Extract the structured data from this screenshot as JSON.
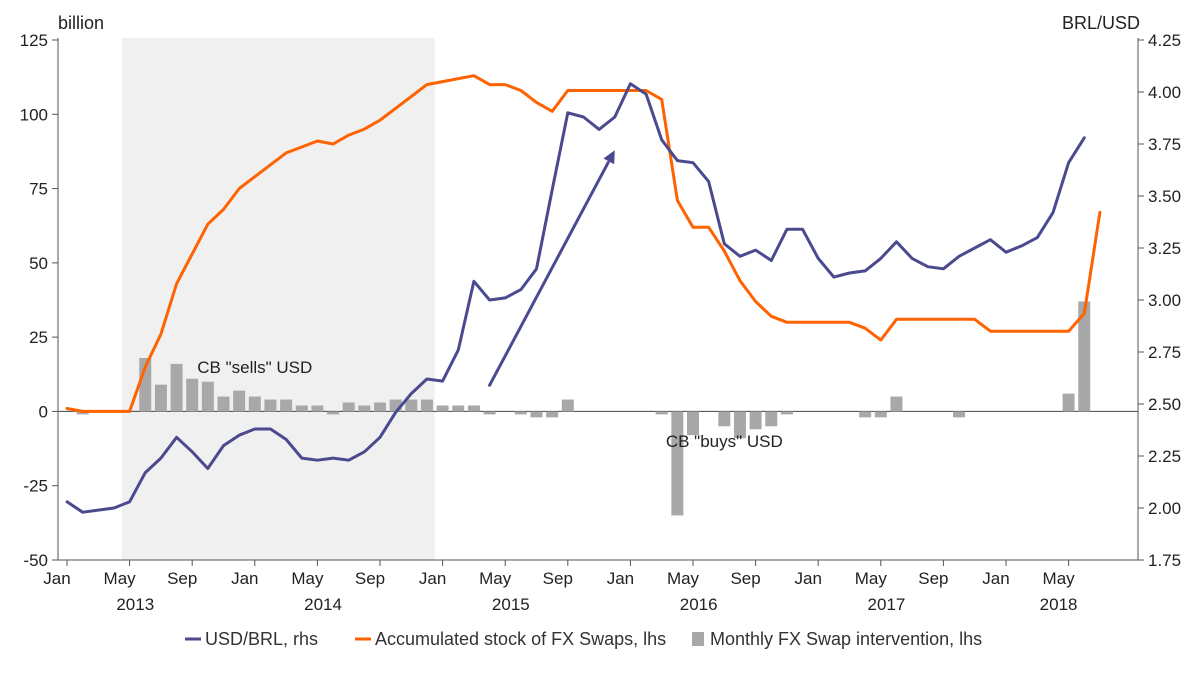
{
  "chart_data": {
    "type": "bar+line",
    "left_unit": "billion",
    "right_unit": "BRL/USD",
    "left_ylim": [
      -50,
      125
    ],
    "left_ticks": [
      -50,
      -25,
      0,
      25,
      50,
      75,
      100,
      125
    ],
    "right_ylim": [
      1.75,
      4.25
    ],
    "right_ticks": [
      "1.75",
      "2.00",
      "2.25",
      "2.50",
      "2.75",
      "3.00",
      "3.25",
      "3.50",
      "3.75",
      "4.00",
      "4.25"
    ],
    "x_start": "2013-01",
    "x_month_labels": [
      {
        "month": "2013-01",
        "label": "Jan"
      },
      {
        "month": "2013-05",
        "label": "May"
      },
      {
        "month": "2013-09",
        "label": "Sep"
      },
      {
        "month": "2014-01",
        "label": "Jan"
      },
      {
        "month": "2014-05",
        "label": "May"
      },
      {
        "month": "2014-09",
        "label": "Sep"
      },
      {
        "month": "2015-01",
        "label": "Jan"
      },
      {
        "month": "2015-05",
        "label": "May"
      },
      {
        "month": "2015-09",
        "label": "Sep"
      },
      {
        "month": "2016-01",
        "label": "Jan"
      },
      {
        "month": "2016-05",
        "label": "May"
      },
      {
        "month": "2016-09",
        "label": "Sep"
      },
      {
        "month": "2017-01",
        "label": "Jan"
      },
      {
        "month": "2017-05",
        "label": "May"
      },
      {
        "month": "2017-09",
        "label": "Sep"
      },
      {
        "month": "2018-01",
        "label": "Jan"
      },
      {
        "month": "2018-05",
        "label": "May"
      }
    ],
    "x_year_labels": [
      {
        "month": "2013-06",
        "label": "2013"
      },
      {
        "month": "2014-06",
        "label": "2014"
      },
      {
        "month": "2015-06",
        "label": "2015"
      },
      {
        "month": "2016-06",
        "label": "2016"
      },
      {
        "month": "2017-06",
        "label": "2017"
      },
      {
        "month": "2018-05",
        "label": "2018"
      }
    ],
    "shaded_period": {
      "from": "2013-05",
      "to": "2015-01"
    },
    "annotations": [
      {
        "text": "CB \"sells\" USD",
        "month": "2014-01",
        "value": 13
      },
      {
        "text": "CB \"buys\" USD",
        "month": "2016-07",
        "value": -12
      }
    ],
    "arrow": {
      "from_month": "2015-04",
      "from_rate": 2.59,
      "to_month": "2015-12",
      "to_rate": 3.72
    },
    "series": [
      {
        "name": "USD/BRL, rhs",
        "axis": "right",
        "type": "line",
        "color": "#4b4a8f",
        "points": [
          [
            "2013-01",
            2.03
          ],
          [
            "2013-02",
            1.98
          ],
          [
            "2013-03",
            1.99
          ],
          [
            "2013-04",
            2.0
          ],
          [
            "2013-05",
            2.03
          ],
          [
            "2013-06",
            2.17
          ],
          [
            "2013-07",
            2.24
          ],
          [
            "2013-08",
            2.34
          ],
          [
            "2013-09",
            2.27
          ],
          [
            "2013-10",
            2.19
          ],
          [
            "2013-11",
            2.3
          ],
          [
            "2013-12",
            2.35
          ],
          [
            "2014-01",
            2.38
          ],
          [
            "2014-02",
            2.38
          ],
          [
            "2014-03",
            2.33
          ],
          [
            "2014-04",
            2.24
          ],
          [
            "2014-05",
            2.23
          ],
          [
            "2014-06",
            2.24
          ],
          [
            "2014-07",
            2.23
          ],
          [
            "2014-08",
            2.27
          ],
          [
            "2014-09",
            2.34
          ],
          [
            "2014-10",
            2.46
          ],
          [
            "2014-11",
            2.55
          ],
          [
            "2014-12",
            2.62
          ],
          [
            "2015-01",
            2.61
          ],
          [
            "2015-02",
            2.76
          ],
          [
            "2015-03",
            3.09
          ],
          [
            "2015-04",
            3.0
          ],
          [
            "2015-05",
            3.01
          ],
          [
            "2015-06",
            3.05
          ],
          [
            "2015-07",
            3.15
          ],
          [
            "2015-08",
            3.53
          ],
          [
            "2015-09",
            3.9
          ],
          [
            "2015-10",
            3.88
          ],
          [
            "2015-11",
            3.82
          ],
          [
            "2015-12",
            3.88
          ],
          [
            "2016-01",
            4.04
          ],
          [
            "2016-02",
            3.99
          ],
          [
            "2016-03",
            3.77
          ],
          [
            "2016-04",
            3.67
          ],
          [
            "2016-05",
            3.66
          ],
          [
            "2016-06",
            3.57
          ],
          [
            "2016-07",
            3.27
          ],
          [
            "2016-08",
            3.21
          ],
          [
            "2016-09",
            3.24
          ],
          [
            "2016-10",
            3.19
          ],
          [
            "2016-11",
            3.34
          ],
          [
            "2016-12",
            3.34
          ],
          [
            "2017-01",
            3.2
          ],
          [
            "2017-02",
            3.11
          ],
          [
            "2017-03",
            3.13
          ],
          [
            "2017-04",
            3.14
          ],
          [
            "2017-05",
            3.2
          ],
          [
            "2017-06",
            3.28
          ],
          [
            "2017-07",
            3.2
          ],
          [
            "2017-08",
            3.16
          ],
          [
            "2017-09",
            3.15
          ],
          [
            "2017-10",
            3.21
          ],
          [
            "2017-11",
            3.25
          ],
          [
            "2017-12",
            3.29
          ],
          [
            "2018-01",
            3.23
          ],
          [
            "2018-02",
            3.26
          ],
          [
            "2018-03",
            3.3
          ],
          [
            "2018-04",
            3.42
          ],
          [
            "2018-05",
            3.66
          ],
          [
            "2018-06",
            3.78
          ]
        ]
      },
      {
        "name": "Accumulated stock of FX Swaps, lhs",
        "axis": "left",
        "type": "line",
        "color": "#ff6200",
        "points": [
          [
            "2013-01",
            1
          ],
          [
            "2013-02",
            0
          ],
          [
            "2013-03",
            0
          ],
          [
            "2013-04",
            0
          ],
          [
            "2013-05",
            0
          ],
          [
            "2013-06",
            15
          ],
          [
            "2013-07",
            26
          ],
          [
            "2013-08",
            43
          ],
          [
            "2013-09",
            53
          ],
          [
            "2013-10",
            63
          ],
          [
            "2013-11",
            68
          ],
          [
            "2013-12",
            75
          ],
          [
            "2014-01",
            79
          ],
          [
            "2014-02",
            83
          ],
          [
            "2014-03",
            87
          ],
          [
            "2014-04",
            89
          ],
          [
            "2014-05",
            91
          ],
          [
            "2014-06",
            90
          ],
          [
            "2014-07",
            93
          ],
          [
            "2014-08",
            95
          ],
          [
            "2014-09",
            98
          ],
          [
            "2014-10",
            102
          ],
          [
            "2014-11",
            106
          ],
          [
            "2014-12",
            110
          ],
          [
            "2015-01",
            111
          ],
          [
            "2015-02",
            112
          ],
          [
            "2015-03",
            113
          ],
          [
            "2015-04",
            110
          ],
          [
            "2015-05",
            110
          ],
          [
            "2015-06",
            108
          ],
          [
            "2015-07",
            104
          ],
          [
            "2015-08",
            101
          ],
          [
            "2015-09",
            108
          ],
          [
            "2015-10",
            108
          ],
          [
            "2015-11",
            108
          ],
          [
            "2015-12",
            108
          ],
          [
            "2016-01",
            108
          ],
          [
            "2016-02",
            108
          ],
          [
            "2016-03",
            105
          ],
          [
            "2016-04",
            71
          ],
          [
            "2016-05",
            62
          ],
          [
            "2016-06",
            62
          ],
          [
            "2016-07",
            54
          ],
          [
            "2016-08",
            44
          ],
          [
            "2016-09",
            37
          ],
          [
            "2016-10",
            32
          ],
          [
            "2016-11",
            30
          ],
          [
            "2016-12",
            30
          ],
          [
            "2017-01",
            30
          ],
          [
            "2017-02",
            30
          ],
          [
            "2017-03",
            30
          ],
          [
            "2017-04",
            28
          ],
          [
            "2017-05",
            24
          ],
          [
            "2017-06",
            31
          ],
          [
            "2017-07",
            31
          ],
          [
            "2017-08",
            31
          ],
          [
            "2017-09",
            31
          ],
          [
            "2017-10",
            31
          ],
          [
            "2017-11",
            31
          ],
          [
            "2017-12",
            27
          ],
          [
            "2018-01",
            27
          ],
          [
            "2018-02",
            27
          ],
          [
            "2018-03",
            27
          ],
          [
            "2018-04",
            27
          ],
          [
            "2018-05",
            27
          ],
          [
            "2018-06",
            33
          ],
          [
            "2018-07",
            67
          ]
        ]
      },
      {
        "name": "Monthly FX Swap intervention, lhs",
        "axis": "left",
        "type": "bar",
        "color": "#a8a8a8",
        "points": [
          [
            "2013-02",
            -1
          ],
          [
            "2013-06",
            18
          ],
          [
            "2013-07",
            9
          ],
          [
            "2013-08",
            16
          ],
          [
            "2013-09",
            11
          ],
          [
            "2013-10",
            10
          ],
          [
            "2013-11",
            5
          ],
          [
            "2013-12",
            7
          ],
          [
            "2014-01",
            5
          ],
          [
            "2014-02",
            4
          ],
          [
            "2014-03",
            4
          ],
          [
            "2014-04",
            2
          ],
          [
            "2014-05",
            2
          ],
          [
            "2014-06",
            -1
          ],
          [
            "2014-07",
            3
          ],
          [
            "2014-08",
            2
          ],
          [
            "2014-09",
            3
          ],
          [
            "2014-10",
            4
          ],
          [
            "2014-11",
            4
          ],
          [
            "2014-12",
            4
          ],
          [
            "2015-01",
            2
          ],
          [
            "2015-02",
            2
          ],
          [
            "2015-03",
            2
          ],
          [
            "2015-04",
            -1
          ],
          [
            "2015-06",
            -1
          ],
          [
            "2015-07",
            -2
          ],
          [
            "2015-08",
            -2
          ],
          [
            "2015-09",
            4
          ],
          [
            "2016-03",
            -1
          ],
          [
            "2016-04",
            -35
          ],
          [
            "2016-05",
            -8
          ],
          [
            "2016-07",
            -5
          ],
          [
            "2016-08",
            -9
          ],
          [
            "2016-09",
            -6
          ],
          [
            "2016-10",
            -5
          ],
          [
            "2016-11",
            -1
          ],
          [
            "2017-04",
            -2
          ],
          [
            "2017-05",
            -2
          ],
          [
            "2017-06",
            5
          ],
          [
            "2017-10",
            -2
          ],
          [
            "2018-05",
            6
          ],
          [
            "2018-06",
            37
          ]
        ]
      }
    ],
    "legend": {
      "placement": "bottom-center",
      "entries": [
        {
          "label": "USD/BRL, rhs",
          "color": "#4b4a8f",
          "kind": "line"
        },
        {
          "label": "Accumulated stock of FX Swaps, lhs",
          "color": "#ff6200",
          "kind": "line"
        },
        {
          "label": "Monthly FX Swap intervention, lhs",
          "color": "#a8a8a8",
          "kind": "square"
        }
      ]
    }
  }
}
